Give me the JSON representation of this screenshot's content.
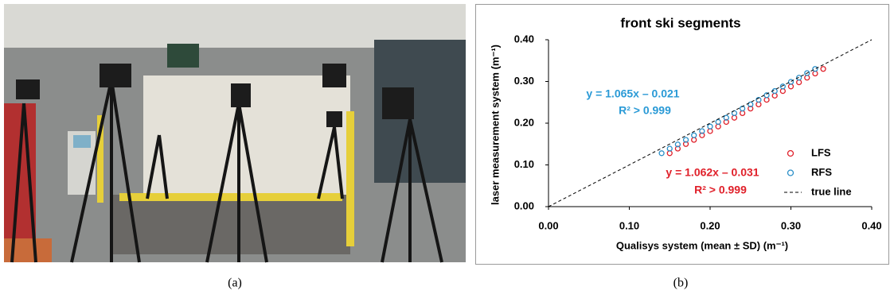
{
  "panel_labels": [
    "(a)",
    "(b)"
  ],
  "chart_data": {
    "type": "scatter",
    "title": "front ski segments",
    "x_label": "Qualisys system (mean ± SD) (m⁻¹)",
    "y_label": "laser measurement system (m⁻¹)",
    "xlim": [
      0,
      0.4
    ],
    "ylim": [
      0,
      0.4
    ],
    "xticks": [
      {
        "value": 0,
        "label": "0.00"
      },
      {
        "value": 0.1,
        "label": "0.10"
      },
      {
        "value": 0.2,
        "label": "0.20"
      },
      {
        "value": 0.3,
        "label": "0.30"
      },
      {
        "value": 0.4,
        "label": "0.40"
      }
    ],
    "yticks": [
      {
        "value": 0,
        "label": "0.00"
      },
      {
        "value": 0.1,
        "label": "0.10"
      },
      {
        "value": 0.2,
        "label": "0.20"
      },
      {
        "value": 0.3,
        "label": "0.30"
      },
      {
        "value": 0.4,
        "label": "0.40"
      }
    ],
    "grid": false,
    "legend": "lower right",
    "series": [
      {
        "name": "LFS",
        "color": "#e0202a",
        "marker": "circle",
        "x": [
          0.15,
          0.16,
          0.17,
          0.18,
          0.19,
          0.2,
          0.21,
          0.22,
          0.23,
          0.24,
          0.25,
          0.26,
          0.27,
          0.28,
          0.29,
          0.3,
          0.31,
          0.32,
          0.33,
          0.34
        ],
        "values": [
          0.128,
          0.139,
          0.15,
          0.16,
          0.171,
          0.181,
          0.192,
          0.203,
          0.213,
          0.224,
          0.235,
          0.245,
          0.256,
          0.266,
          0.277,
          0.288,
          0.298,
          0.309,
          0.319,
          0.33
        ]
      },
      {
        "name": "RFS",
        "color": "#2a8fc8",
        "marker": "circle",
        "x": [
          0.14,
          0.15,
          0.16,
          0.17,
          0.18,
          0.19,
          0.2,
          0.21,
          0.22,
          0.23,
          0.24,
          0.25,
          0.26,
          0.27,
          0.28,
          0.29,
          0.3,
          0.31,
          0.32,
          0.33
        ],
        "values": [
          0.128,
          0.139,
          0.149,
          0.16,
          0.171,
          0.181,
          0.192,
          0.203,
          0.213,
          0.224,
          0.235,
          0.245,
          0.256,
          0.267,
          0.277,
          0.288,
          0.299,
          0.309,
          0.32,
          0.33
        ]
      },
      {
        "name": "true line",
        "color": "#000000",
        "marker": "dashed-line",
        "x": [
          0,
          0.4
        ],
        "values": [
          0,
          0.4
        ]
      }
    ],
    "annotations": [
      {
        "text": "y = 1.065x – 0.021",
        "color": "#2a9ad6"
      },
      {
        "text": "R² > 0.999",
        "color": "#2a9ad6"
      },
      {
        "text": "y = 1.062x – 0.031",
        "color": "#e0202a"
      },
      {
        "text": "R² > 0.999",
        "color": "#e0202a"
      }
    ]
  }
}
